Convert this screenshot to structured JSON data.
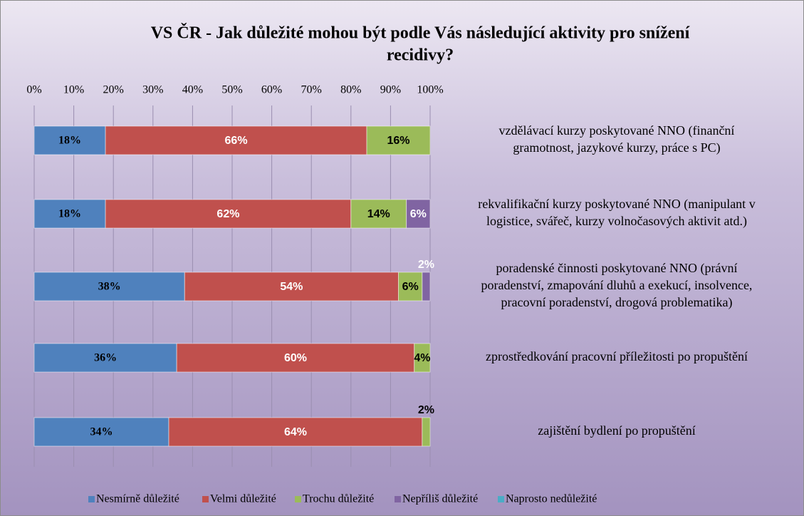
{
  "chart_data": {
    "type": "stacked-bar-horizontal",
    "title": [
      "VS ČR - Jak důležité mohou být podle Vás následující aktivity pro snížení",
      "recidivy?"
    ],
    "categories": [
      [
        "vzdělávací kurzy poskytované NNO (finanční",
        "gramotnost, jazykové kurzy, práce s PC)"
      ],
      [
        "rekvalifikační kurzy poskytované NNO (manipulant v",
        "logistice, svářeč, kurzy volnočasových aktivit atd.)"
      ],
      [
        "poradenské činnosti poskytované NNO (právní",
        "poradenství, zmapování dluhů a exekucí, insolvence,",
        "pracovní poradenství, drogová problematika)"
      ],
      [
        "zprostředkování pracovní příležitosti po propuštění"
      ],
      [
        "zajištění bydlení po propuštění"
      ]
    ],
    "series": [
      {
        "name": "Nesmírně důležité",
        "color": "#4f81bd",
        "values": [
          18,
          18,
          38,
          36,
          34
        ],
        "value_labels": [
          "18%",
          "18%",
          "38%",
          "36%",
          "34%"
        ]
      },
      {
        "name": "Velmi důležité",
        "color": "#c0504d",
        "values": [
          66,
          62,
          54,
          60,
          64
        ],
        "value_labels": [
          "66%",
          "62%",
          "54%",
          "60%",
          "64%"
        ]
      },
      {
        "name": "Trochu důležité",
        "color": "#9bbb59",
        "values": [
          16,
          14,
          6,
          4,
          2
        ],
        "value_labels": [
          "16%",
          "14%",
          "6%",
          "4%",
          "2%"
        ]
      },
      {
        "name": "Nepříliš důležité",
        "color": "#8064a2",
        "values": [
          null,
          6,
          2,
          null,
          null
        ],
        "value_labels": [
          null,
          "6%",
          "2%",
          null,
          null
        ]
      },
      {
        "name": "Naprosto nedůležité",
        "color": "#4bacc6",
        "values": [
          null,
          null,
          null,
          null,
          null
        ]
      }
    ],
    "xlim": [
      0,
      100
    ],
    "xticks": [
      {
        "value": 0,
        "label": "0%"
      },
      {
        "value": 10,
        "label": "10%"
      },
      {
        "value": 20,
        "label": "20%"
      },
      {
        "value": 30,
        "label": "30%"
      },
      {
        "value": 40,
        "label": "40%"
      },
      {
        "value": 50,
        "label": "50%"
      },
      {
        "value": 60,
        "label": "60%"
      },
      {
        "value": 70,
        "label": "70%"
      },
      {
        "value": 80,
        "label": "80%"
      },
      {
        "value": 90,
        "label": "90%"
      },
      {
        "value": 100,
        "label": "100%"
      }
    ],
    "grid": true,
    "legend": "bottom"
  }
}
